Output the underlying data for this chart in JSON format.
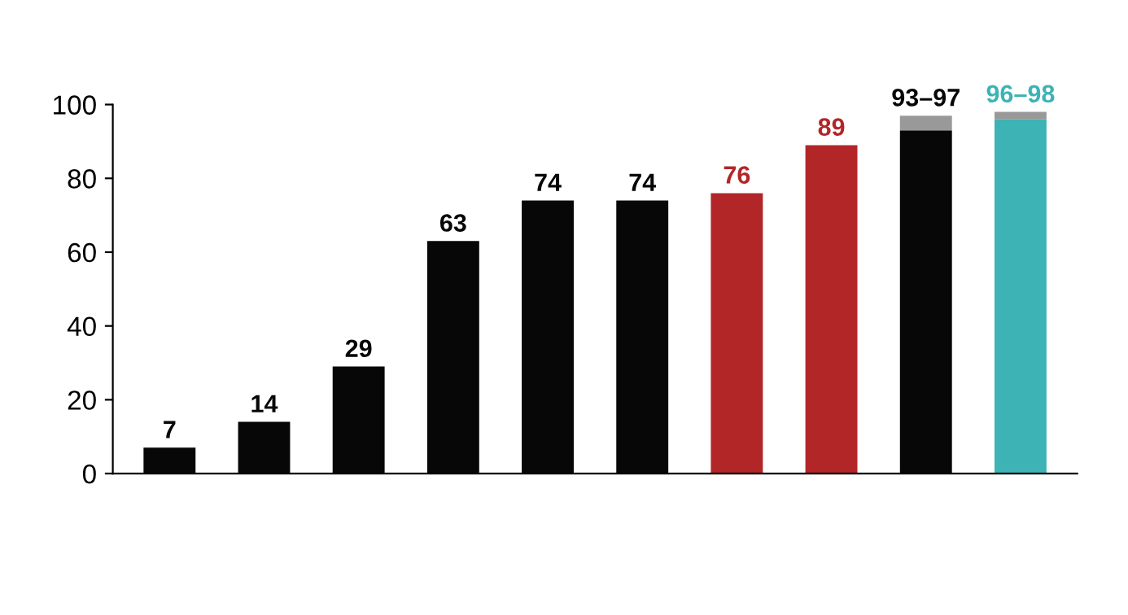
{
  "chart_data": {
    "type": "bar",
    "stacked": true,
    "categories": [
      null,
      null,
      null,
      null,
      null,
      null,
      null,
      null,
      null,
      null
    ],
    "series": [
      {
        "colors": [
          "#070707",
          "#070707",
          "#070707",
          "#070707",
          "#070707",
          "#070707",
          "#b22628",
          "#b22628",
          "#070707",
          "#3db3b5"
        ],
        "values": [
          7,
          14,
          29,
          63,
          74,
          74,
          76,
          89,
          93,
          96
        ],
        "value_labels": [
          "7",
          "14",
          "29",
          "63",
          "74",
          "74",
          "76",
          "89",
          null,
          null
        ]
      },
      {
        "colors": [
          "#999999",
          "#999999",
          "#999999",
          "#999999",
          "#999999",
          "#999999",
          "#999999",
          "#999999",
          "#999999",
          "#999999"
        ],
        "values": [
          null,
          null,
          null,
          null,
          null,
          null,
          null,
          null,
          4,
          2
        ],
        "value_labels": [
          null,
          null,
          null,
          null,
          null,
          null,
          null,
          null,
          "93–97",
          "96–98"
        ]
      }
    ],
    "ylim": [
      0,
      100
    ],
    "yticks": [
      0,
      20,
      40,
      60,
      80,
      100
    ],
    "grid": false,
    "tick_labels": "y"
  }
}
